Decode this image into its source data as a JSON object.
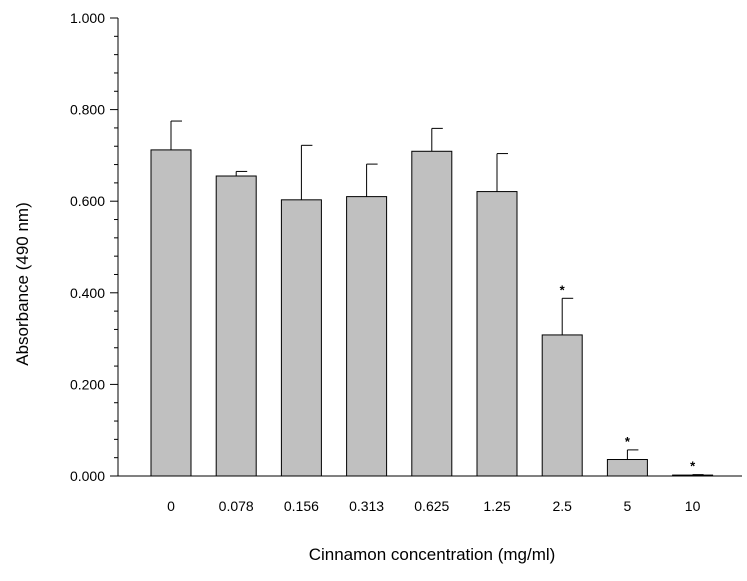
{
  "chart_data": {
    "type": "bar",
    "categories": [
      "0",
      "0.078",
      "0.156",
      "0.313",
      "0.625",
      "1.25",
      "2.5",
      "5",
      "10"
    ],
    "values": [
      0.712,
      0.655,
      0.603,
      0.61,
      0.709,
      0.621,
      0.308,
      0.036,
      0.002
    ],
    "error_upper": [
      0.775,
      0.665,
      0.722,
      0.681,
      0.759,
      0.704,
      0.388,
      0.057,
      0.003
    ],
    "significance": [
      "",
      "",
      "",
      "",
      "",
      "",
      "*",
      "*",
      "*"
    ],
    "xlabel": "Cinnamon concentration (mg/ml)",
    "ylabel": "Absorbance (490 nm)",
    "ylim": [
      0,
      1.0
    ],
    "yticks": [
      "0.000",
      "0.200",
      "0.400",
      "0.600",
      "0.800",
      "1.000"
    ],
    "bar_color": "#c0c0c0",
    "edge_color": "#000000",
    "grid": false
  }
}
